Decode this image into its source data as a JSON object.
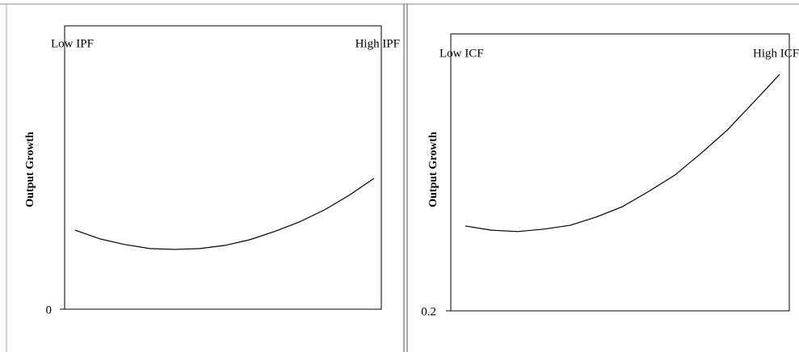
{
  "chart_data": [
    {
      "type": "line",
      "y_label": "Output Growth",
      "annotations": [
        "Low IPF",
        "High IPF"
      ],
      "categories": [
        null,
        null,
        null,
        null,
        null,
        null,
        null,
        null,
        null,
        null,
        null,
        null,
        null
      ],
      "values": [
        0.279,
        0.248,
        0.228,
        0.214,
        0.211,
        0.214,
        0.225,
        0.245,
        0.274,
        0.308,
        0.35,
        0.402,
        0.462
      ],
      "color": "#000000",
      "ylim": [
        0,
        1
      ],
      "yticks": [
        0
      ]
    },
    {
      "type": "line",
      "y_label": "Output Growth",
      "annotations": [
        "Low ICF",
        "High ICF"
      ],
      "categories": [
        null,
        null,
        null,
        null,
        null,
        null,
        null,
        null,
        null,
        null,
        null,
        null,
        null
      ],
      "values": [
        0.445,
        0.433,
        0.429,
        0.436,
        0.447,
        0.471,
        0.501,
        0.545,
        0.592,
        0.655,
        0.722,
        0.802,
        0.883
      ],
      "color": "#000000",
      "ylim": [
        0.2,
        1
      ],
      "yticks": [
        0.2
      ]
    }
  ]
}
